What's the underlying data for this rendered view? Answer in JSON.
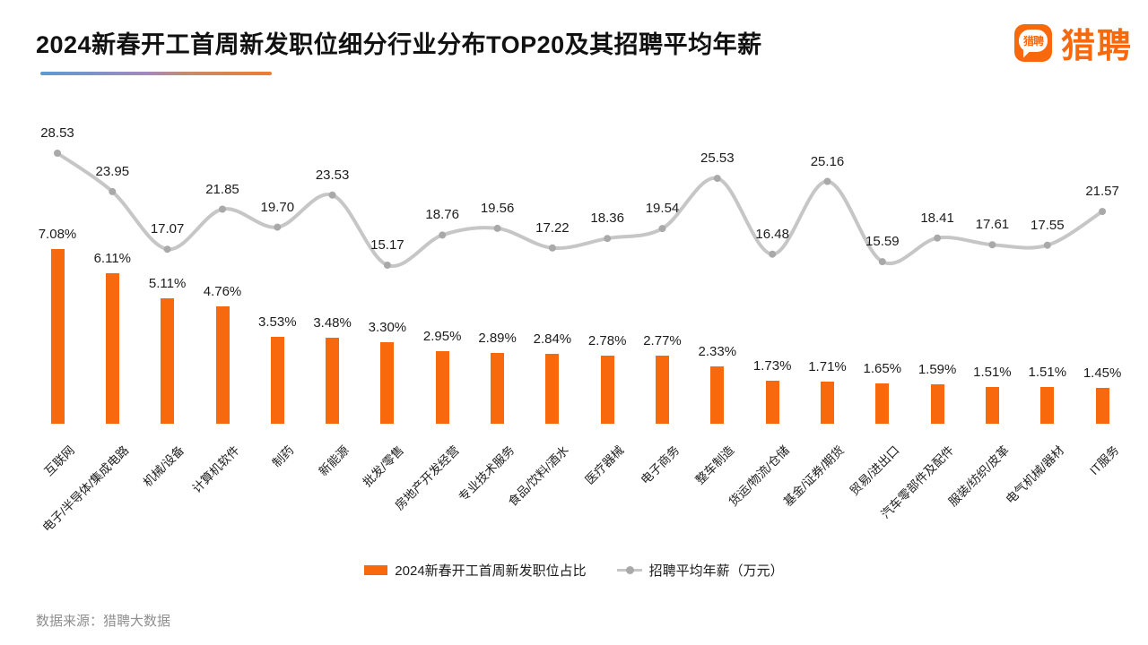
{
  "header": {
    "title": "2024新春开工首周新发职位细分行业分布TOP20及其招聘平均年薪",
    "logo_bubble_text": "猎聘",
    "logo_wordmark": "猎聘"
  },
  "chart_data": {
    "type": "bar+line combo",
    "categories": [
      "互联网",
      "电子/半导体/集成电路",
      "机械/设备",
      "计算机软件",
      "制药",
      "新能源",
      "批发/零售",
      "房地产开发经营",
      "专业技术服务",
      "食品/饮料/酒水",
      "医疗器械",
      "电子商务",
      "整车制造",
      "货运/物流/仓储",
      "基金/证券/期货",
      "贸易/进出口",
      "汽车零部件及配件",
      "服装/纺织/皮革",
      "电气机械/器材",
      "IT服务"
    ],
    "series": [
      {
        "name": "2024新春开工首周新发职位占比",
        "type": "bar",
        "unit": "%",
        "color": "#F7690C",
        "values": [
          7.08,
          6.11,
          5.11,
          4.76,
          3.53,
          3.48,
          3.3,
          2.95,
          2.89,
          2.84,
          2.78,
          2.77,
          2.33,
          1.73,
          1.71,
          1.65,
          1.59,
          1.51,
          1.51,
          1.45
        ]
      },
      {
        "name": "招聘平均年薪（万元）",
        "type": "line",
        "unit": "万元",
        "color": "#C6C6C6",
        "marker_color": "#A9A9A9",
        "values": [
          28.53,
          23.95,
          17.07,
          21.85,
          19.7,
          23.53,
          15.17,
          18.76,
          19.56,
          17.22,
          18.36,
          19.54,
          25.53,
          16.48,
          25.16,
          15.59,
          18.41,
          17.61,
          17.55,
          21.57
        ]
      }
    ],
    "value_label_decimals": 2,
    "legend_position": "bottom",
    "grid": false,
    "axes_hidden": true
  },
  "footer": {
    "source": "数据来源：猎聘大数据"
  },
  "colors": {
    "brand_orange": "#F7690C",
    "bar": "#F7690C",
    "line": "#C6C6C6",
    "line_marker": "#A9A9A9",
    "title_underline_from": "#5B9BD5",
    "title_underline_to": "#ED7D31"
  }
}
